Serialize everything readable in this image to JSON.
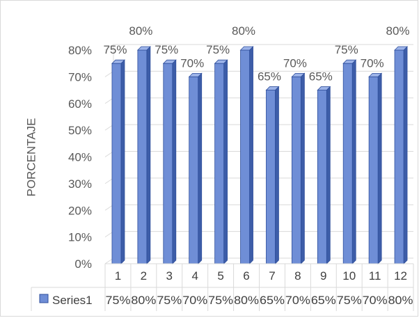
{
  "chart_data": {
    "type": "bar",
    "ylabel": "PORCENTAJE",
    "categories": [
      "1",
      "2",
      "3",
      "4",
      "5",
      "6",
      "7",
      "8",
      "9",
      "10",
      "11",
      "12"
    ],
    "series": [
      {
        "name": "Series1",
        "values": [
          75,
          80,
          75,
          70,
          75,
          80,
          65,
          70,
          65,
          75,
          70,
          80
        ],
        "labels": [
          "75%",
          "80%",
          "75%",
          "70%",
          "75%",
          "80%",
          "65%",
          "70%",
          "65%",
          "75%",
          "70%",
          "80%"
        ]
      }
    ],
    "ylim": [
      0,
      80
    ],
    "yticks": [
      "0%",
      "10%",
      "20%",
      "30%",
      "40%",
      "50%",
      "60%",
      "70%",
      "80%"
    ],
    "bar_style": "3d-clustered-column",
    "grid": true,
    "data_table": true,
    "colors": {
      "bar_front": "#6f8ed6",
      "bar_side": "#3d5da8",
      "bar_top": "#9cb3e8",
      "bar_edge": "#2f4f9c",
      "gridline": "#d9d9d9",
      "text": "#595959"
    }
  }
}
